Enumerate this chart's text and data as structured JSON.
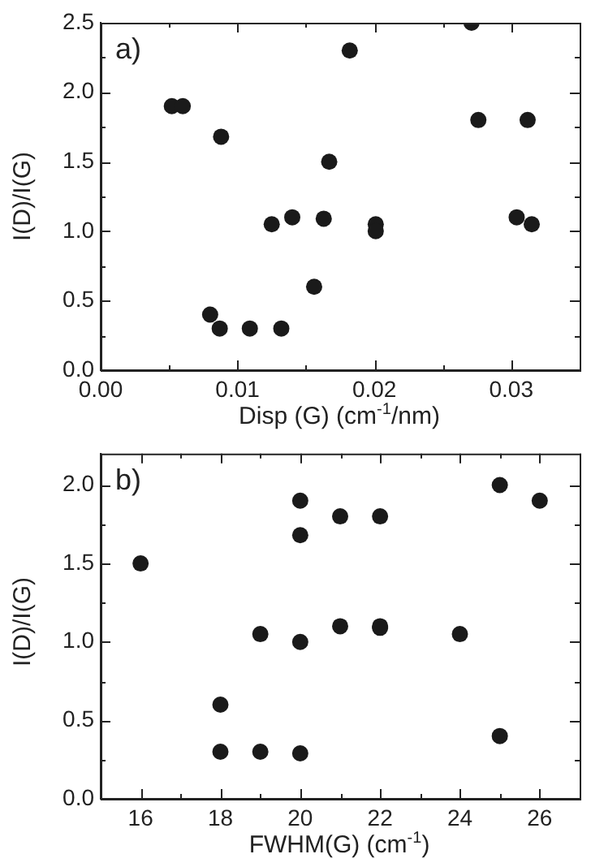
{
  "chart_data": [
    {
      "type": "scatter",
      "annotations": [
        "a)"
      ],
      "xlabel": "Disp (G) (cm$^{-1}$/nm)",
      "ylabel": "I(D)/I(G)",
      "marker": "circle",
      "grid": false,
      "legend": false,
      "xlim": [
        0,
        0.035
      ],
      "ylim": [
        0,
        2.5
      ],
      "xticks": [
        {
          "value": 0,
          "label": "0.00"
        },
        {
          "value": 0.005,
          "label": null
        },
        {
          "value": 0.01,
          "label": "0.01"
        },
        {
          "value": 0.015,
          "label": null
        },
        {
          "value": 0.02,
          "label": "0.02"
        },
        {
          "value": 0.025,
          "label": null
        },
        {
          "value": 0.03,
          "label": "0.03"
        }
      ],
      "yticks": [
        {
          "value": 0,
          "label": "0.0"
        },
        {
          "value": 0.25,
          "label": null
        },
        {
          "value": 0.5,
          "label": "0.5"
        },
        {
          "value": 0.75,
          "label": null
        },
        {
          "value": 1,
          "label": "1.0"
        },
        {
          "value": 1.25,
          "label": null
        },
        {
          "value": 1.5,
          "label": "1.5"
        },
        {
          "value": 1.75,
          "label": null
        },
        {
          "value": 2,
          "label": "2.0"
        },
        {
          "value": 2.25,
          "label": null
        },
        {
          "value": 2.5,
          "label": "2.5"
        }
      ],
      "series": [
        {
          "color": "#1a1a1a",
          "x": [
            0.0052,
            0.006,
            0.0088,
            0.008,
            0.0087,
            0.0109,
            0.0132,
            0.0125,
            0.014,
            0.0156,
            0.0163,
            0.0167,
            0.0182,
            0.0201,
            0.0201,
            0.0271,
            0.0276,
            0.0304,
            0.0312,
            0.0315
          ],
          "values": [
            1.9,
            1.9,
            1.68,
            0.4,
            0.3,
            0.3,
            0.3,
            1.05,
            1.1,
            0.6,
            1.09,
            1.5,
            2.3,
            1.05,
            1.0,
            2.5,
            1.8,
            1.1,
            1.8,
            1.05
          ]
        }
      ]
    },
    {
      "type": "scatter",
      "annotations": [
        "b)"
      ],
      "xlabel": "FWHM(G) (cm$^{-1}$)",
      "ylabel": "I(D)/I(G)",
      "marker": "circle",
      "grid": false,
      "legend": false,
      "xlim": [
        15,
        27
      ],
      "ylim": [
        0,
        2.2
      ],
      "xticks": [
        {
          "value": 15,
          "label": null
        },
        16,
        {
          "value": 17,
          "label": null
        },
        18,
        {
          "value": 19,
          "label": null
        },
        20,
        {
          "value": 21,
          "label": null
        },
        22,
        {
          "value": 23,
          "label": null
        },
        24,
        {
          "value": 25,
          "label": null
        },
        26,
        {
          "value": 27,
          "label": null
        }
      ],
      "yticks": [
        {
          "value": 0,
          "label": "0.0"
        },
        {
          "value": 0.25,
          "label": null
        },
        {
          "value": 0.5,
          "label": "0.5"
        },
        {
          "value": 0.75,
          "label": null
        },
        {
          "value": 1,
          "label": "1.0"
        },
        {
          "value": 1.25,
          "label": null
        },
        {
          "value": 1.5,
          "label": "1.5"
        },
        {
          "value": 1.75,
          "label": null
        },
        {
          "value": 2,
          "label": "2.0"
        }
      ],
      "series": [
        {
          "color": "#1a1a1a",
          "x": [
            16,
            18,
            18,
            19,
            19,
            20,
            20,
            20,
            20,
            21,
            21,
            22,
            22,
            22,
            24,
            25,
            25,
            26
          ],
          "values": [
            1.5,
            0.6,
            0.3,
            1.05,
            0.3,
            1.9,
            1.68,
            1.0,
            0.29,
            1.8,
            1.1,
            1.8,
            1.1,
            1.09,
            1.05,
            2.0,
            0.4,
            1.9
          ]
        }
      ]
    }
  ]
}
